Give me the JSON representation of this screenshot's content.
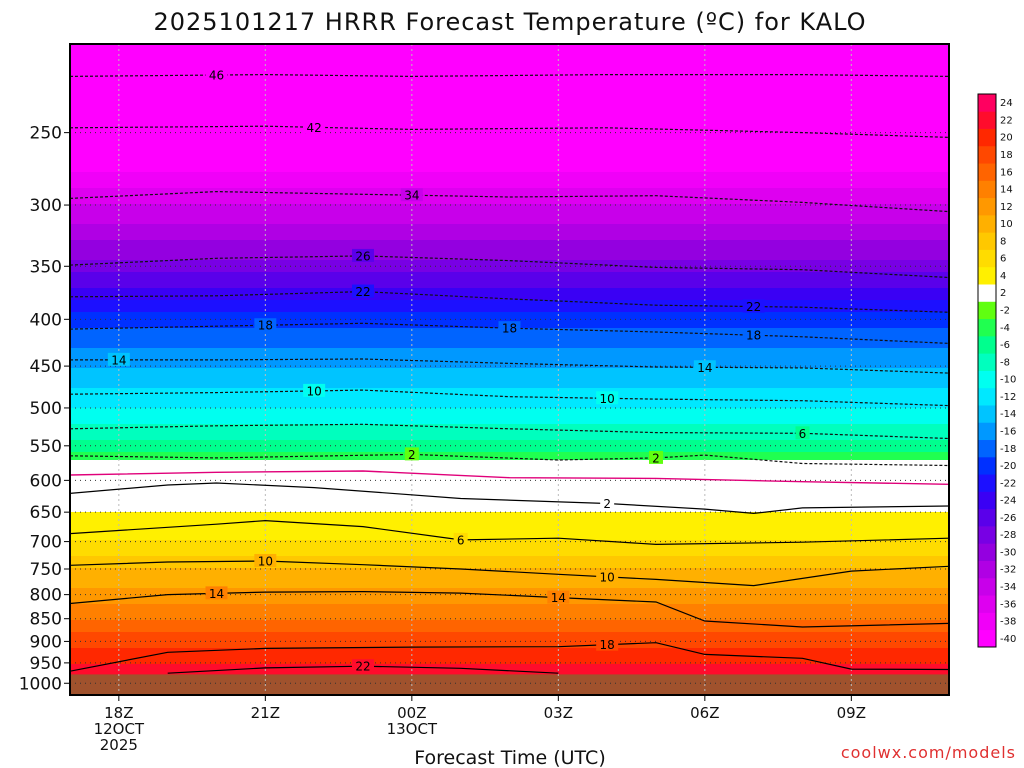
{
  "chart_data": {
    "type": "heatmap",
    "title": "2025101217 HRRR Forecast Temperature (ºC) for KALO",
    "xlabel": "Forecast Time (UTC)",
    "ylabel": "",
    "credit": "coolwx.com/models",
    "x_hours": [
      -1,
      0,
      3,
      6,
      9,
      12,
      15,
      18
    ],
    "xlim": [
      -1,
      17
    ],
    "x_ticks": [
      {
        "hour": 0,
        "lines": [
          "18Z",
          "12OCT",
          "2025"
        ]
      },
      {
        "hour": 3,
        "lines": [
          "21Z"
        ]
      },
      {
        "hour": 6,
        "lines": [
          "00Z",
          "13OCT"
        ]
      },
      {
        "hour": 9,
        "lines": [
          "03Z"
        ]
      },
      {
        "hour": 12,
        "lines": [
          "06Z"
        ]
      },
      {
        "hour": 15,
        "lines": [
          "09Z"
        ]
      }
    ],
    "y_ticks": [
      250,
      300,
      350,
      400,
      450,
      500,
      550,
      600,
      650,
      700,
      750,
      800,
      850,
      900,
      950,
      1000
    ],
    "y_tick_labels": [
      "250",
      "300",
      "350",
      "400",
      "450",
      "500",
      "550",
      "600",
      "650",
      "700",
      "750",
      "800",
      "850",
      "900",
      "950",
      "1000"
    ],
    "ylim_hPa": [
      1030,
      200
    ],
    "ground_pressure_hPa": 978,
    "ground_color": "#a0522d",
    "temperature_profile": {
      "pressures_hPa": [
        200,
        250,
        300,
        350,
        400,
        450,
        500,
        550,
        575,
        600,
        650,
        700,
        750,
        800,
        850,
        900,
        950,
        978
      ],
      "values_C": [
        -48,
        -42,
        -34,
        -27,
        -19,
        -14,
        -10,
        -5,
        -1,
        1,
        4,
        6,
        10,
        13,
        16,
        19,
        22,
        23
      ]
    },
    "colorbar": {
      "levels": [
        -40,
        -38,
        -36,
        -34,
        -32,
        -30,
        -28,
        -26,
        -24,
        -22,
        -20,
        -18,
        -16,
        -14,
        -12,
        -10,
        -8,
        -6,
        -4,
        -2,
        2,
        4,
        6,
        8,
        10,
        12,
        14,
        16,
        18,
        20,
        22,
        24
      ],
      "labels": [
        "-40",
        "-38",
        "-36",
        "-34",
        "-32",
        "-30",
        "-28",
        "-26",
        "-24",
        "-22",
        "-20",
        "-18",
        "-16",
        "-14",
        "-12",
        "-10",
        "-8",
        "-6",
        "-4",
        "-2",
        "2",
        "4",
        "6",
        "8",
        "10",
        "12",
        "14",
        "16",
        "18",
        "20",
        "22",
        "24"
      ],
      "colors": [
        "#ff00ff",
        "#f000f8",
        "#de00f0",
        "#c800ea",
        "#b000e4",
        "#9400e0",
        "#7800e4",
        "#5a00ea",
        "#3a00f4",
        "#1c10ff",
        "#0030ff",
        "#0064ff",
        "#0098ff",
        "#00c4ff",
        "#00e8ff",
        "#00fff0",
        "#00ffbe",
        "#00ff8e",
        "#20ff50",
        "#60ff10",
        "#ffffff",
        "#fff000",
        "#ffdc00",
        "#ffc800",
        "#ffb000",
        "#ff9800",
        "#ff8000",
        "#ff6400",
        "#ff4800",
        "#ff2800",
        "#ff0c2c",
        "#ff0060"
      ]
    },
    "contours": [
      {
        "label": "46",
        "value": -46,
        "style": "dashed",
        "hours": [
          -1,
          3,
          6,
          10,
          14,
          17
        ],
        "pressures": [
          217,
          216,
          217,
          216,
          216,
          217
        ],
        "label_hours": [
          2
        ]
      },
      {
        "label": "42",
        "value": -42,
        "style": "dashed",
        "hours": [
          -1,
          3,
          6,
          10,
          14,
          17
        ],
        "pressures": [
          247,
          246,
          248,
          247,
          250,
          253
        ],
        "label_hours": [
          4
        ]
      },
      {
        "label": "34",
        "value": -34,
        "style": "dashed",
        "hours": [
          -1,
          2,
          5,
          8,
          11,
          14,
          17
        ],
        "pressures": [
          295,
          290,
          292,
          294,
          293,
          298,
          305
        ],
        "label_hours": [
          6
        ]
      },
      {
        "label": "26",
        "value": -26,
        "style": "dashed",
        "hours": [
          -1,
          2,
          5,
          8,
          11,
          14,
          17
        ],
        "pressures": [
          349,
          343,
          341,
          345,
          351,
          353,
          360
        ],
        "label_hours": [
          5
        ]
      },
      {
        "label": "22",
        "value": -22,
        "style": "dashed",
        "hours": [
          -1,
          2,
          5,
          8,
          11,
          14,
          17
        ],
        "pressures": [
          378,
          377,
          373,
          380,
          386,
          388,
          393
        ],
        "label_hours": [
          5,
          13
        ]
      },
      {
        "label": "18",
        "value": -18,
        "style": "dashed",
        "hours": [
          -1,
          2,
          5,
          8,
          11,
          14,
          17
        ],
        "pressures": [
          410,
          407,
          404,
          409,
          413,
          418,
          425
        ],
        "label_hours": [
          3,
          8,
          13
        ]
      },
      {
        "label": "14",
        "value": -14,
        "style": "dashed",
        "hours": [
          -1,
          2,
          5,
          8,
          11,
          14,
          17
        ],
        "pressures": [
          443,
          443,
          442,
          447,
          451,
          452,
          458
        ],
        "label_hours": [
          0,
          12
        ]
      },
      {
        "label": "10",
        "value": -10,
        "style": "dashed",
        "hours": [
          -1,
          2,
          5,
          8,
          11,
          14,
          17
        ],
        "pressures": [
          483,
          481,
          478,
          486,
          489,
          491,
          497
        ],
        "label_hours": [
          4,
          10
        ]
      },
      {
        "label": "6",
        "value": -6,
        "style": "dashed",
        "hours": [
          -1,
          2,
          5,
          8,
          11,
          14,
          17
        ],
        "pressures": [
          527,
          523,
          521,
          527,
          532,
          533,
          540
        ],
        "label_hours": [
          14
        ]
      },
      {
        "label": "2",
        "value": -2,
        "style": "dashed",
        "hours": [
          -1,
          2,
          6,
          9,
          11,
          12,
          14,
          17
        ],
        "pressures": [
          564,
          567,
          562,
          570,
          567,
          563,
          575,
          578
        ],
        "label_hours": [
          6,
          11
        ]
      },
      {
        "label": "0",
        "value": 0,
        "style": "magenta",
        "hours": [
          -1,
          2,
          5,
          8,
          11,
          14,
          17
        ],
        "pressures": [
          592,
          588,
          586,
          596,
          597,
          602,
          606
        ],
        "label_hours": []
      },
      {
        "label": "2",
        "value": 2,
        "style": "solid",
        "hours": [
          -1,
          1,
          2,
          4,
          7,
          10,
          12,
          13,
          14,
          17
        ],
        "pressures": [
          620,
          607,
          604,
          611,
          628,
          636,
          645,
          652,
          643,
          640
        ],
        "label_hours": [
          10
        ]
      },
      {
        "label": "6",
        "value": 6,
        "style": "solid",
        "hours": [
          -1,
          2,
          3,
          5,
          7,
          9,
          11,
          14,
          17
        ],
        "pressures": [
          686,
          670,
          664,
          674,
          697,
          694,
          705,
          701,
          694
        ],
        "label_hours": [
          7
        ]
      },
      {
        "label": "10",
        "value": 10,
        "style": "solid",
        "hours": [
          -1,
          1,
          3,
          5,
          7,
          9,
          11,
          13,
          15,
          17
        ],
        "pressures": [
          743,
          737,
          735,
          742,
          750,
          760,
          770,
          782,
          754,
          745
        ],
        "label_hours": [
          3,
          10
        ]
      },
      {
        "label": "14",
        "value": 14,
        "style": "solid",
        "hours": [
          -1,
          1,
          3,
          5,
          7,
          9,
          11,
          12,
          14,
          17
        ],
        "pressures": [
          818,
          800,
          795,
          794,
          797,
          806,
          815,
          855,
          868,
          860
        ],
        "label_hours": [
          2,
          9
        ]
      },
      {
        "label": "18",
        "value": 18,
        "style": "solid",
        "hours": [
          -1,
          1,
          3,
          6,
          9,
          11,
          12,
          14,
          15,
          17
        ],
        "pressures": [
          970,
          925,
          916,
          913,
          912,
          903,
          930,
          939,
          965,
          966
        ],
        "label_hours": [
          10
        ]
      },
      {
        "label": "22",
        "value": 22,
        "style": "solid",
        "hours": [
          1,
          3,
          5,
          7,
          9
        ],
        "pressures": [
          975,
          962,
          958,
          963,
          975
        ],
        "label_hours": [
          5
        ]
      }
    ]
  }
}
